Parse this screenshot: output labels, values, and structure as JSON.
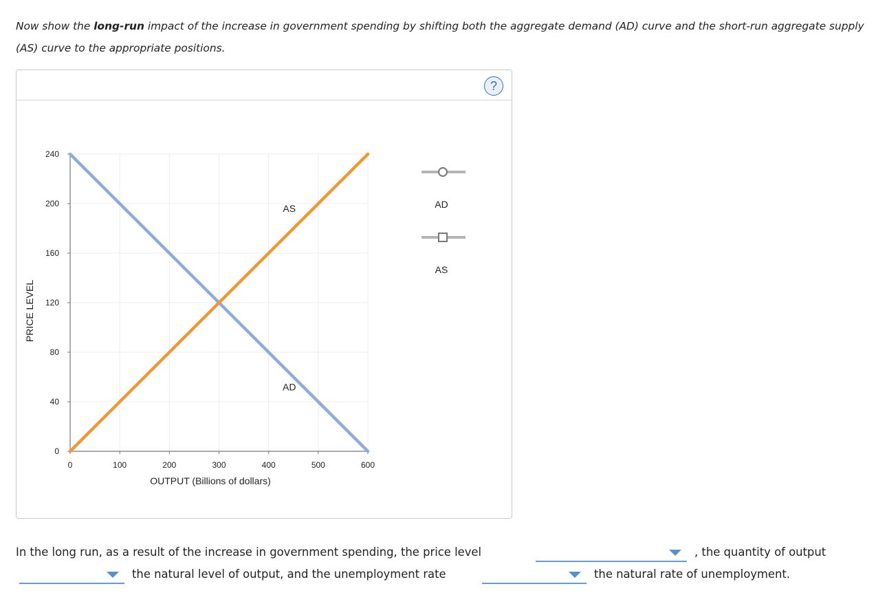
{
  "prompt": {
    "part1": "Now show the ",
    "bold": "long-run",
    "part2": " impact of the increase in government spending by shifting both the aggregate demand (AD) curve and the short-run aggregate supply (AS) curve to the appropriate positions."
  },
  "help_icon": "?",
  "legend": [
    {
      "label": "AD",
      "marker": "circle"
    },
    {
      "label": "AS",
      "marker": "square"
    }
  ],
  "chart_data": {
    "type": "line",
    "xlabel": "OUTPUT (Billions of dollars)",
    "ylabel": "PRICE LEVEL",
    "xlim": [
      0,
      600
    ],
    "ylim": [
      0,
      240
    ],
    "xticks": [
      0,
      100,
      200,
      300,
      400,
      500,
      600
    ],
    "yticks": [
      0,
      40,
      80,
      120,
      160,
      200,
      240
    ],
    "grid": true,
    "series": [
      {
        "name": "AD",
        "color": "#8eacd4",
        "x": [
          0,
          600
        ],
        "y": [
          240,
          0
        ],
        "label_at": [
          450,
          52
        ]
      },
      {
        "name": "AS",
        "color": "#f0973a",
        "x": [
          0,
          600
        ],
        "y": [
          0,
          240
        ],
        "label_at": [
          450,
          196
        ]
      }
    ]
  },
  "question": {
    "t1": "In the long run, as a result of the increase in government spending, the price level",
    "t2": ", the quantity of output",
    "t3": "the natural level of output, and the unemployment rate",
    "t4": "the natural rate of unemployment.",
    "dropdowns": [
      "",
      "",
      ""
    ]
  },
  "colors": {
    "accent": "#5b8fc7",
    "ad": "#8eacd4",
    "as": "#f0973a"
  }
}
